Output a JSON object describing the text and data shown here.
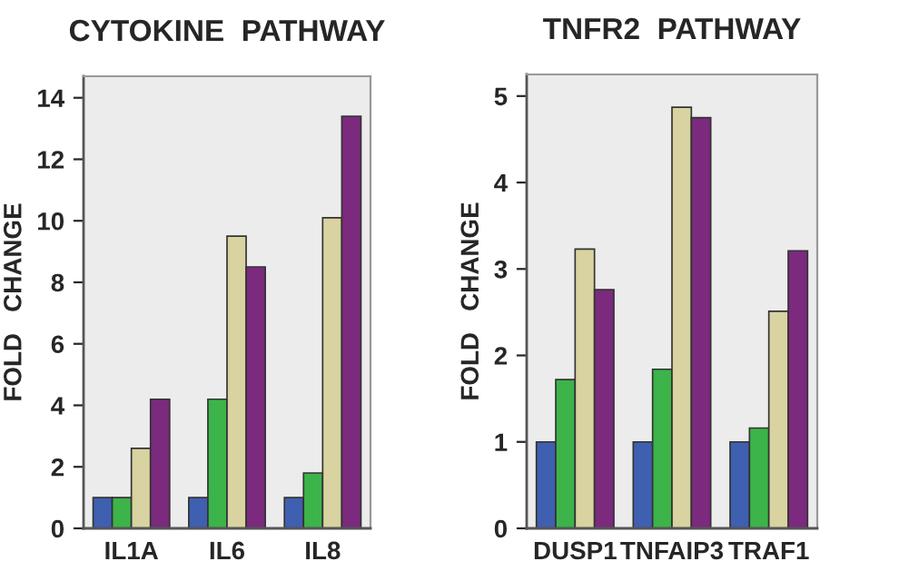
{
  "chart_data": [
    {
      "type": "bar",
      "title": "CYTOKINE  PATHWAY",
      "ylabel": "FOLD   CHANGE",
      "categories": [
        "IL1A",
        "IL6",
        "IL8"
      ],
      "ylim": [
        0,
        14.7
      ],
      "yticks": [
        0,
        2,
        4,
        6,
        8,
        10,
        12,
        14
      ],
      "grid": false,
      "legend": false,
      "series": [
        {
          "color": "#3f5fb0",
          "values": [
            1,
            1,
            1
          ]
        },
        {
          "color": "#3cb44a",
          "values": [
            1,
            4.2,
            1.8
          ]
        },
        {
          "color": "#d8d3a0",
          "values": [
            2.6,
            9.5,
            10.1
          ]
        },
        {
          "color": "#7b2a7e",
          "values": [
            4.2,
            8.5,
            13.4
          ]
        }
      ]
    },
    {
      "type": "bar",
      "title": "TNFR2  PATHWAY",
      "ylabel": "FOLD   CHANGE",
      "categories": [
        "DUSP1",
        "TNFAIP3",
        "TRAF1"
      ],
      "ylim": [
        0,
        5.25
      ],
      "yticks": [
        0,
        1,
        2,
        3,
        4,
        5
      ],
      "grid": false,
      "legend": false,
      "series": [
        {
          "color": "#3f5fb0",
          "values": [
            1,
            1,
            1
          ]
        },
        {
          "color": "#3cb44a",
          "values": [
            1.72,
            1.84,
            1.16
          ]
        },
        {
          "color": "#d8d3a0",
          "values": [
            3.23,
            4.87,
            2.51
          ]
        },
        {
          "color": "#7b2a7e",
          "values": [
            2.76,
            4.75,
            3.21
          ]
        }
      ]
    }
  ]
}
